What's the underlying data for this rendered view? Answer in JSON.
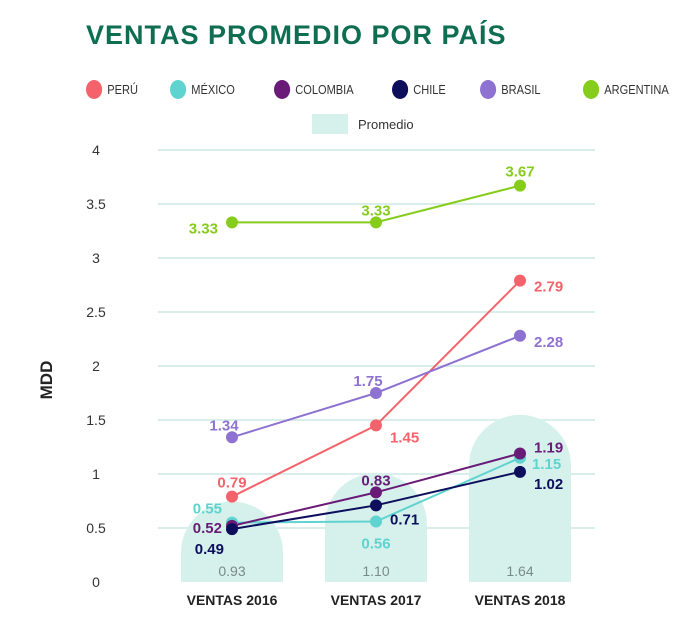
{
  "chart_data": {
    "type": "line",
    "title": "VENTAS PROMEDIO POR PAÍS",
    "xlabel": "",
    "ylabel": "MDD",
    "ylim": [
      0,
      4
    ],
    "yticks": [
      "0",
      "0.5",
      "1",
      "1.5",
      "2",
      "2.5",
      "3",
      "3.5",
      "4"
    ],
    "categories": [
      "VENTAS 2016",
      "VENTAS 2017",
      "VENTAS 2018"
    ],
    "grid": true,
    "legend_placement": "top",
    "series": [
      {
        "name": "PERÚ",
        "color": "#f4636b",
        "values": [
          0.79,
          1.45,
          2.79
        ],
        "labels": [
          "0.79",
          "1.45",
          "2.79"
        ]
      },
      {
        "name": "MÉXICO",
        "color": "#5fd3cf",
        "values": [
          0.55,
          0.56,
          1.15
        ],
        "labels": [
          "0.55",
          "0.56",
          "1.15"
        ]
      },
      {
        "name": "COLOMBIA",
        "color": "#6a1b78",
        "values": [
          0.52,
          0.83,
          1.19
        ],
        "labels": [
          "0.52",
          "0.83",
          "1.19"
        ]
      },
      {
        "name": "CHILE",
        "color": "#0d0f5c",
        "values": [
          0.49,
          0.71,
          1.02
        ],
        "labels": [
          "0.49",
          "0.71",
          "1.02"
        ]
      },
      {
        "name": "BRASIL",
        "color": "#8e72d2",
        "values": [
          1.34,
          1.75,
          2.28
        ],
        "labels": [
          "1.34",
          "1.75",
          "2.28"
        ]
      },
      {
        "name": "ARGENTINA",
        "color": "#86cc1a",
        "values": [
          3.33,
          3.33,
          3.67
        ],
        "labels": [
          "3.33",
          "3.33",
          "3.67"
        ]
      }
    ],
    "average": {
      "name": "Promedio",
      "color": "#d6f1ec",
      "values": [
        0.93,
        1.1,
        1.64
      ],
      "labels": [
        "0.93",
        "1.10",
        "1.64"
      ]
    }
  }
}
